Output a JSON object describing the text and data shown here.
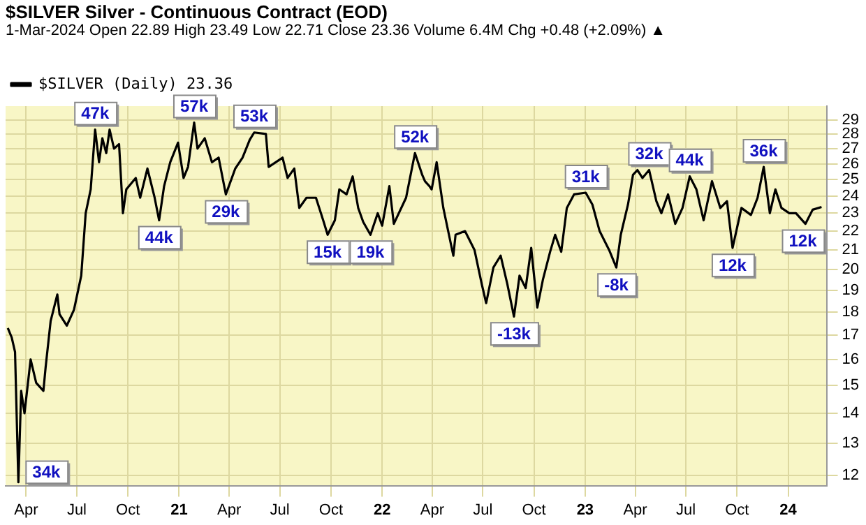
{
  "chart_data": {
    "type": "line",
    "title": "$SILVER Silver - Continuous Contract (EOD)",
    "subtitle": "1-Mar-2024 Open 22.89 High 23.49 Low 22.71 Close 23.36 Volume 6.4M Chg +0.48 (+2.09%) ▲",
    "x": [
      "2020-02-28",
      "2020-03-06",
      "2020-03-12",
      "2020-03-18",
      "2020-03-23",
      "2020-03-29",
      "2020-04-09",
      "2020-04-19",
      "2020-05-02",
      "2020-05-06",
      "2020-05-15",
      "2020-05-27",
      "2020-05-31",
      "2020-06-13",
      "2020-06-26",
      "2020-07-09",
      "2020-07-17",
      "2020-07-26",
      "2020-08-03",
      "2020-08-10",
      "2020-08-16",
      "2020-08-23",
      "2020-08-29",
      "2020-09-06",
      "2020-09-15",
      "2020-09-22",
      "2020-09-28",
      "2020-10-15",
      "2020-10-23",
      "2020-11-05",
      "2020-11-18",
      "2020-11-26",
      "2020-12-05",
      "2020-12-16",
      "2020-12-30",
      "2021-01-09",
      "2021-01-17",
      "2021-01-28",
      "2021-02-03",
      "2021-02-16",
      "2021-03-01",
      "2021-03-13",
      "2021-03-26",
      "2021-04-12",
      "2021-04-25",
      "2021-05-08",
      "2021-05-16",
      "2021-06-06",
      "2021-06-11",
      "2021-07-06",
      "2021-07-15",
      "2021-07-27",
      "2021-08-05",
      "2021-08-18",
      "2021-09-04",
      "2021-09-17",
      "2021-09-25",
      "2021-10-08",
      "2021-10-16",
      "2021-10-29",
      "2021-11-09",
      "2021-11-19",
      "2021-11-28",
      "2021-12-11",
      "2021-12-24",
      "2022-01-01",
      "2022-01-14",
      "2022-01-22",
      "2022-02-13",
      "2022-03-01",
      "2022-03-14",
      "2022-03-19",
      "2022-03-27",
      "2022-03-31",
      "2022-04-09",
      "2022-04-21",
      "2022-05-09",
      "2022-05-13",
      "2022-05-30",
      "2022-06-16",
      "2022-06-29",
      "2022-07-07",
      "2022-07-20",
      "2022-08-02",
      "2022-08-14",
      "2022-08-26",
      "2022-09-05",
      "2022-09-16",
      "2022-09-26",
      "2022-10-07",
      "2022-10-17",
      "2022-10-30",
      "2022-11-08",
      "2022-11-19",
      "2022-11-29",
      "2022-12-12",
      "2023-01-02",
      "2023-01-14",
      "2023-01-27",
      "2023-02-13",
      "2023-02-26",
      "2023-03-06",
      "2023-03-19",
      "2023-03-28",
      "2023-04-05",
      "2023-04-14",
      "2023-04-26",
      "2023-05-09",
      "2023-05-18",
      "2023-05-30",
      "2023-06-12",
      "2023-06-25",
      "2023-07-08",
      "2023-07-20",
      "2023-08-02",
      "2023-08-17",
      "2023-09-01",
      "2023-09-13",
      "2023-09-23",
      "2023-10-09",
      "2023-10-26",
      "2023-11-07",
      "2023-11-18",
      "2023-11-29",
      "2023-12-09",
      "2023-12-20",
      "2024-01-03",
      "2024-01-15",
      "2024-02-01",
      "2024-02-14",
      "2024-03-01"
    ],
    "series": [
      {
        "name": "$SILVER (Daily) 23.36",
        "color": "#000000",
        "values": [
          17.3,
          16.9,
          16.3,
          11.8,
          14.8,
          14.0,
          16.0,
          15.1,
          14.8,
          15.7,
          17.6,
          18.8,
          17.9,
          17.4,
          18.1,
          19.7,
          23.0,
          24.4,
          28.3,
          26.1,
          27.7,
          26.7,
          28.3,
          27.0,
          27.3,
          23.0,
          24.4,
          25.1,
          23.9,
          25.7,
          23.9,
          22.6,
          24.6,
          26.1,
          27.4,
          25.1,
          25.8,
          28.8,
          27.0,
          27.7,
          26.1,
          26.4,
          24.1,
          25.7,
          26.4,
          27.6,
          28.1,
          28.0,
          25.8,
          26.4,
          25.1,
          25.7,
          23.3,
          23.9,
          23.9,
          22.6,
          21.8,
          22.6,
          24.4,
          24.1,
          25.2,
          23.3,
          22.5,
          21.8,
          23.0,
          22.3,
          24.6,
          22.4,
          23.9,
          26.7,
          25.3,
          24.9,
          24.6,
          24.4,
          26.1,
          23.3,
          20.7,
          21.8,
          22.0,
          21.0,
          19.3,
          18.4,
          20.1,
          20.7,
          19.3,
          17.8,
          19.7,
          19.1,
          21.1,
          18.2,
          19.5,
          20.9,
          21.8,
          20.9,
          23.3,
          24.1,
          24.2,
          23.5,
          22.0,
          21.0,
          20.1,
          21.8,
          23.5,
          25.3,
          25.6,
          25.1,
          25.6,
          23.7,
          23.0,
          24.1,
          22.4,
          23.3,
          25.2,
          24.4,
          22.6,
          24.9,
          23.3,
          23.7,
          21.1,
          23.3,
          22.9,
          23.9,
          25.8,
          23.0,
          24.4,
          23.3,
          23.0,
          23.0,
          22.4,
          23.2,
          23.36
        ]
      }
    ],
    "xlim": [
      "2020-02-24",
      "2024-03-10"
    ],
    "xticks": [
      {
        "value": "2020-04-01",
        "label": "Apr"
      },
      {
        "value": "2020-07-01",
        "label": "Jul"
      },
      {
        "value": "2020-10-01",
        "label": "Oct"
      },
      {
        "value": "2021-01-01",
        "label": "21"
      },
      {
        "value": "2021-04-01",
        "label": "Apr"
      },
      {
        "value": "2021-07-01",
        "label": "Jul"
      },
      {
        "value": "2021-10-01",
        "label": "Oct"
      },
      {
        "value": "2022-01-01",
        "label": "22"
      },
      {
        "value": "2022-04-01",
        "label": "Apr"
      },
      {
        "value": "2022-07-01",
        "label": "Jul"
      },
      {
        "value": "2022-10-01",
        "label": "Oct"
      },
      {
        "value": "2023-01-01",
        "label": "23"
      },
      {
        "value": "2023-04-01",
        "label": "Apr"
      },
      {
        "value": "2023-07-01",
        "label": "Jul"
      },
      {
        "value": "2023-10-01",
        "label": "Oct"
      },
      {
        "value": "2024-01-01",
        "label": "24"
      }
    ],
    "ylim": [
      11.7,
      30
    ],
    "yticks": [
      12,
      13,
      14,
      15,
      16,
      17,
      18,
      19,
      20,
      21,
      22,
      23,
      24,
      25,
      26,
      27,
      28,
      29
    ],
    "log": "y",
    "grid": true,
    "legend": "top left",
    "annotations": [
      {
        "text": "34k",
        "x": "2020-03-18",
        "y": 11.8
      },
      {
        "text": "47k",
        "x": "2020-08-03",
        "y": 28.3
      },
      {
        "text": "44k",
        "x": "2020-11-26",
        "y": 22.6
      },
      {
        "text": "57k",
        "x": "2021-01-28",
        "y": 28.8
      },
      {
        "text": "29k",
        "x": "2021-03-26",
        "y": 24.1
      },
      {
        "text": "53k",
        "x": "2021-05-16",
        "y": 28.1
      },
      {
        "text": "15k",
        "x": "2021-09-25",
        "y": 21.8
      },
      {
        "text": "19k",
        "x": "2021-12-11",
        "y": 21.8
      },
      {
        "text": "52k",
        "x": "2022-03-01",
        "y": 26.7
      },
      {
        "text": "-13k",
        "x": "2022-08-26",
        "y": 17.8
      },
      {
        "text": "31k",
        "x": "2023-01-02",
        "y": 24.2
      },
      {
        "text": "-8k",
        "x": "2023-02-26",
        "y": 20.1
      },
      {
        "text": "32k",
        "x": "2023-04-26",
        "y": 25.6
      },
      {
        "text": "44k",
        "x": "2023-07-08",
        "y": 25.2
      },
      {
        "text": "12k",
        "x": "2023-09-23",
        "y": 21.1
      },
      {
        "text": "36k",
        "x": "2023-11-18",
        "y": 25.8
      },
      {
        "text": "12k",
        "x": "2024-03-01",
        "y": 23.36
      }
    ]
  }
}
